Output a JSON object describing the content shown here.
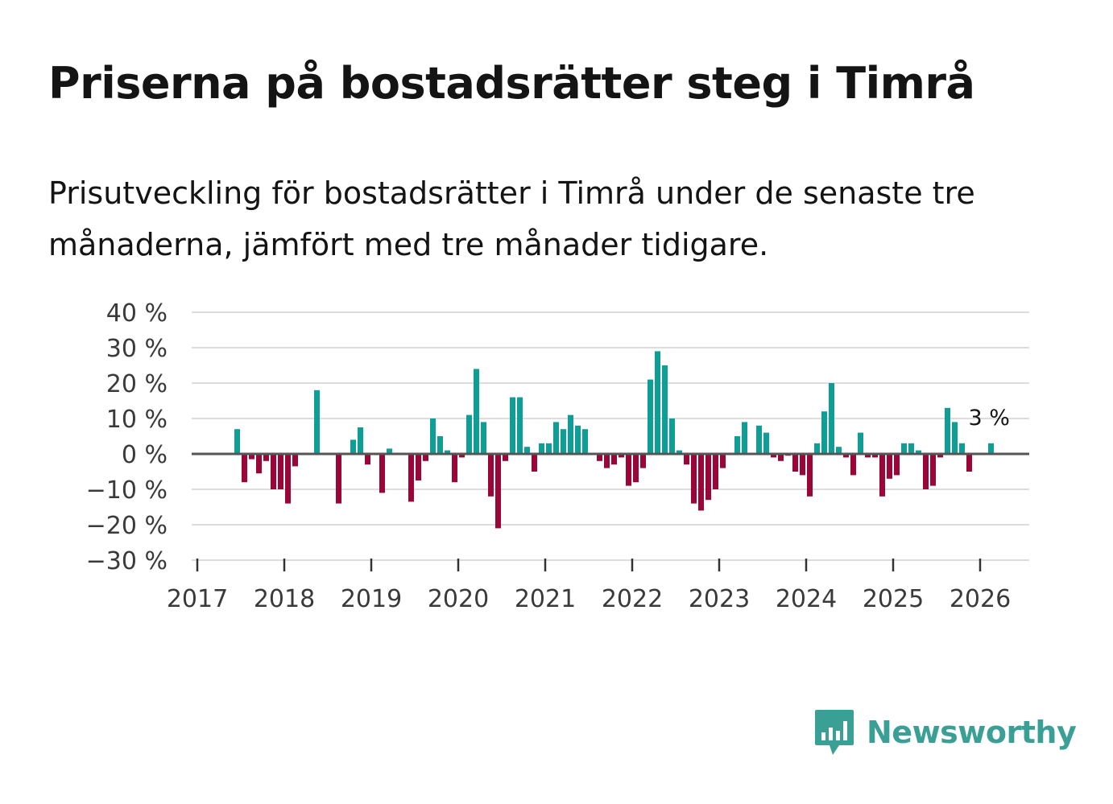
{
  "header": {
    "title": "Priserna på bostadsrätter steg i Timrå",
    "subtitle": "Prisutveckling för bostadsrätter i Timrå under de senaste tre månaderna, jämfört med tre månader tidigare."
  },
  "brand": {
    "name": "Newsworthy",
    "icon": "newsworthy-logo-icon",
    "color": "#3aa095"
  },
  "colors": {
    "positive": "#0f9e96",
    "negative": "#9b0639",
    "zero_line": "#555555",
    "grid": "#dddddd"
  },
  "chart_data": {
    "type": "bar",
    "title": "Priserna på bostadsrätter steg i Timrå",
    "xlabel": "",
    "ylabel": "",
    "unit": "%",
    "ylim": [
      -30,
      40
    ],
    "yticks": [
      40,
      30,
      20,
      10,
      0,
      -10,
      -20,
      -30
    ],
    "ytick_labels": [
      "40 %",
      "30 %",
      "20 %",
      "10 %",
      "0 %",
      "−10 %",
      "−20 %",
      "−30 %"
    ],
    "xlim": [
      2017,
      2026.55
    ],
    "xticks": [
      2017,
      2018,
      2019,
      2020,
      2021,
      2022,
      2023,
      2024,
      2025,
      2026
    ],
    "xtick_labels": [
      "2017",
      "2018",
      "2019",
      "2020",
      "2021",
      "2022",
      "2023",
      "2024",
      "2025",
      "2026"
    ],
    "start": {
      "year": 2017,
      "month": 1
    },
    "values": [
      null,
      null,
      null,
      null,
      null,
      7,
      -8,
      -1.5,
      -5.5,
      -2,
      -10,
      -10,
      -14,
      -3.5,
      null,
      null,
      18,
      null,
      null,
      -14,
      null,
      4,
      7.5,
      -3,
      null,
      -11,
      1.5,
      null,
      null,
      -13.5,
      -7.5,
      -2,
      10,
      5,
      1,
      -8,
      -1,
      11,
      24,
      9,
      -12,
      -21,
      -2,
      16,
      16,
      2,
      -5,
      3,
      3,
      9,
      7,
      11,
      8,
      7,
      null,
      -2,
      -4,
      -3,
      -1,
      -9,
      -8,
      -4,
      21,
      29,
      25,
      10,
      1,
      -3,
      -14,
      -16,
      -13,
      -10,
      -4,
      null,
      5,
      9,
      null,
      8,
      6,
      -1,
      -2,
      -0.5,
      -5,
      -6,
      -12,
      3,
      12,
      20,
      2,
      -1,
      -6,
      6,
      -1,
      -1,
      -12,
      -7,
      -6,
      3,
      3,
      1,
      -10,
      -9,
      -1,
      13,
      9,
      3,
      -5,
      null,
      null,
      3
    ],
    "annotation": {
      "label": "3 %",
      "target": "last"
    }
  }
}
